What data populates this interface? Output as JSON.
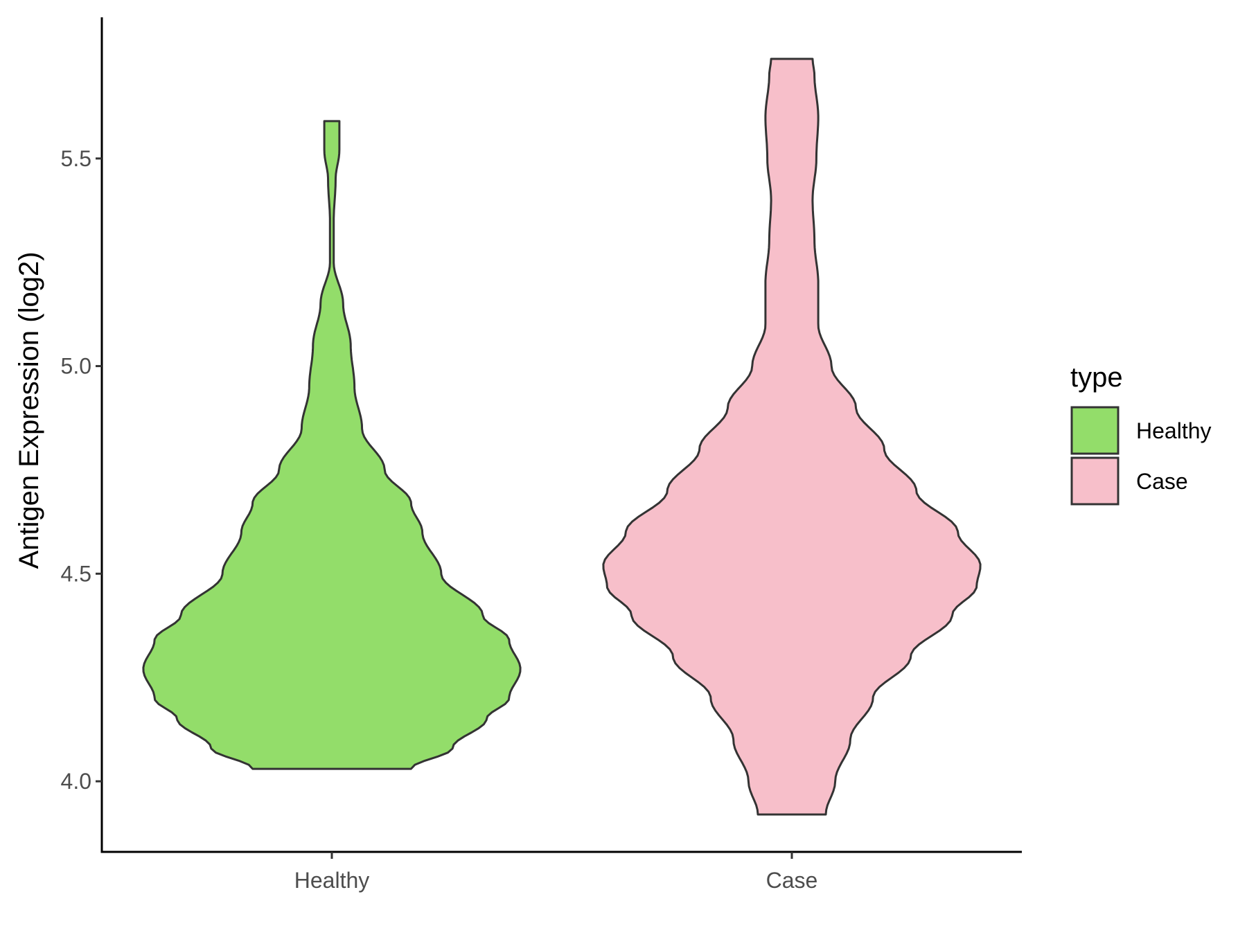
{
  "chart_data": {
    "type": "violin",
    "xlabel": "",
    "ylabel": "Antigen Expression (log2)",
    "ylim": [
      3.83,
      5.84
    ],
    "yticks": [
      "4.0",
      "4.5",
      "5.0",
      "5.5"
    ],
    "ytick_values": [
      4.0,
      4.5,
      5.0,
      5.5
    ],
    "categories": [
      "Healthy",
      "Case"
    ],
    "legend": {
      "title": "type",
      "position": "right",
      "entries": [
        "Healthy",
        "Case"
      ]
    },
    "grid": false,
    "series": [
      {
        "name": "Healthy",
        "color": "#93dd6a",
        "min": 4.03,
        "max": 5.59,
        "density_profile": [
          [
            4.03,
            0.42
          ],
          [
            4.08,
            0.64
          ],
          [
            4.15,
            0.82
          ],
          [
            4.2,
            0.94
          ],
          [
            4.27,
            1.0
          ],
          [
            4.34,
            0.94
          ],
          [
            4.4,
            0.8
          ],
          [
            4.5,
            0.58
          ],
          [
            4.6,
            0.48
          ],
          [
            4.67,
            0.42
          ],
          [
            4.75,
            0.28
          ],
          [
            4.85,
            0.16
          ],
          [
            4.95,
            0.12
          ],
          [
            5.05,
            0.1
          ],
          [
            5.15,
            0.06
          ],
          [
            5.25,
            0.01
          ],
          [
            5.35,
            0.01
          ],
          [
            5.45,
            0.02
          ],
          [
            5.52,
            0.04
          ],
          [
            5.59,
            0.04
          ]
        ]
      },
      {
        "name": "Case",
        "color": "#f7bfca",
        "min": 3.92,
        "max": 5.74,
        "density_profile": [
          [
            3.92,
            0.18
          ],
          [
            4.0,
            0.23
          ],
          [
            4.1,
            0.31
          ],
          [
            4.2,
            0.43
          ],
          [
            4.3,
            0.63
          ],
          [
            4.4,
            0.85
          ],
          [
            4.47,
            0.98
          ],
          [
            4.52,
            1.0
          ],
          [
            4.6,
            0.88
          ],
          [
            4.7,
            0.66
          ],
          [
            4.8,
            0.49
          ],
          [
            4.9,
            0.34
          ],
          [
            5.0,
            0.21
          ],
          [
            5.1,
            0.14
          ],
          [
            5.2,
            0.14
          ],
          [
            5.3,
            0.12
          ],
          [
            5.4,
            0.11
          ],
          [
            5.5,
            0.13
          ],
          [
            5.6,
            0.14
          ],
          [
            5.7,
            0.12
          ],
          [
            5.74,
            0.11
          ]
        ]
      }
    ]
  }
}
